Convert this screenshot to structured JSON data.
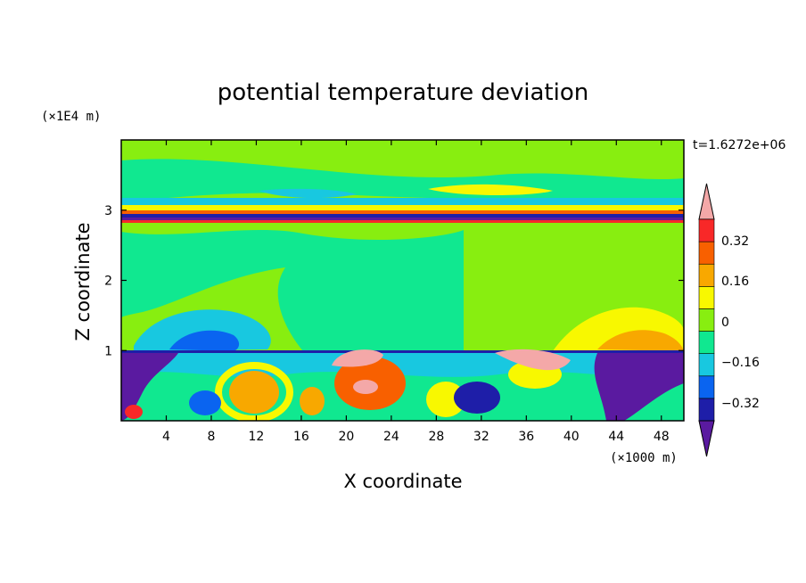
{
  "chart_data": {
    "type": "heatmap",
    "title": "potential temperature deviation",
    "xlabel": "X coordinate",
    "ylabel": "Z coordinate",
    "x_unit": "(×1000 m)",
    "y_unit": "(×1E4 m)",
    "time_label": "t=1.6272e+06",
    "xlim": [
      0,
      50
    ],
    "ylim": [
      0,
      4
    ],
    "x_ticks": [
      "4",
      "8",
      "12",
      "16",
      "20",
      "24",
      "28",
      "32",
      "36",
      "40",
      "44",
      "48"
    ],
    "y_ticks": [
      "1",
      "2",
      "3"
    ],
    "colorbar": {
      "labels": [
        "0.32",
        "0.16",
        "0",
        "−0.16",
        "−0.32"
      ],
      "colors": [
        "#5a1aa0",
        "#1e1ea8",
        "#0a64f0",
        "#18c8e0",
        "#10e890",
        "#88ee10",
        "#f8f800",
        "#f8a800",
        "#f86000",
        "#f82828",
        "#f4a8a8"
      ]
    }
  }
}
